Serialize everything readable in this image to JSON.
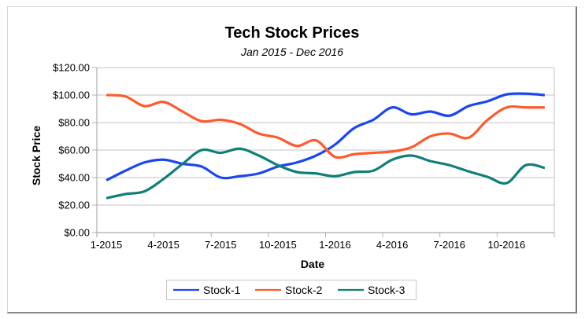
{
  "chart_data": {
    "type": "line",
    "title": "Tech Stock Prices",
    "subtitle": "Jan 2015 - Dec 2016",
    "xlabel": "Date",
    "ylabel": "Stock Price",
    "ylim": [
      0,
      120
    ],
    "y_ticks": [
      0,
      20,
      40,
      60,
      80,
      100,
      120
    ],
    "y_tick_labels": [
      "$0.00",
      "$20.00",
      "$40.00",
      "$60.00",
      "$80.00",
      "$100.00",
      "$120.00"
    ],
    "x_tick_labels": [
      "1-2015",
      "4-2015",
      "7-2015",
      "10-2015",
      "1-2016",
      "4-2016",
      "7-2016",
      "10-2016"
    ],
    "x": [
      "1-2015",
      "2-2015",
      "3-2015",
      "4-2015",
      "5-2015",
      "6-2015",
      "7-2015",
      "8-2015",
      "9-2015",
      "10-2015",
      "11-2015",
      "12-2015",
      "1-2016",
      "2-2016",
      "3-2016",
      "4-2016",
      "5-2016",
      "6-2016",
      "7-2016",
      "8-2016",
      "9-2016",
      "10-2016",
      "11-2016",
      "12-2016"
    ],
    "grid": true,
    "smooth": true,
    "legend_position": "bottom",
    "series": [
      {
        "name": "Stock-1",
        "color": "#1a46f2",
        "values": [
          38,
          45,
          51,
          53,
          50,
          48,
          40,
          41,
          43,
          48,
          51,
          56,
          64,
          76,
          82,
          91,
          86,
          88,
          85,
          92,
          95.5,
          100.5,
          101,
          100
        ]
      },
      {
        "name": "Stock-2",
        "color": "#ff5a2b",
        "values": [
          100,
          99,
          92,
          95,
          88,
          81,
          82,
          79,
          72,
          69,
          63,
          67,
          55,
          57,
          58,
          59,
          62,
          70,
          72,
          69,
          82,
          91,
          91,
          91
        ]
      },
      {
        "name": "Stock-3",
        "color": "#0f7f78",
        "values": [
          25,
          28,
          30,
          39,
          50,
          60,
          58,
          61,
          56,
          49,
          44,
          43,
          41,
          44,
          45,
          53,
          56,
          52,
          49,
          44.5,
          40.5,
          36,
          49,
          47
        ]
      }
    ]
  }
}
